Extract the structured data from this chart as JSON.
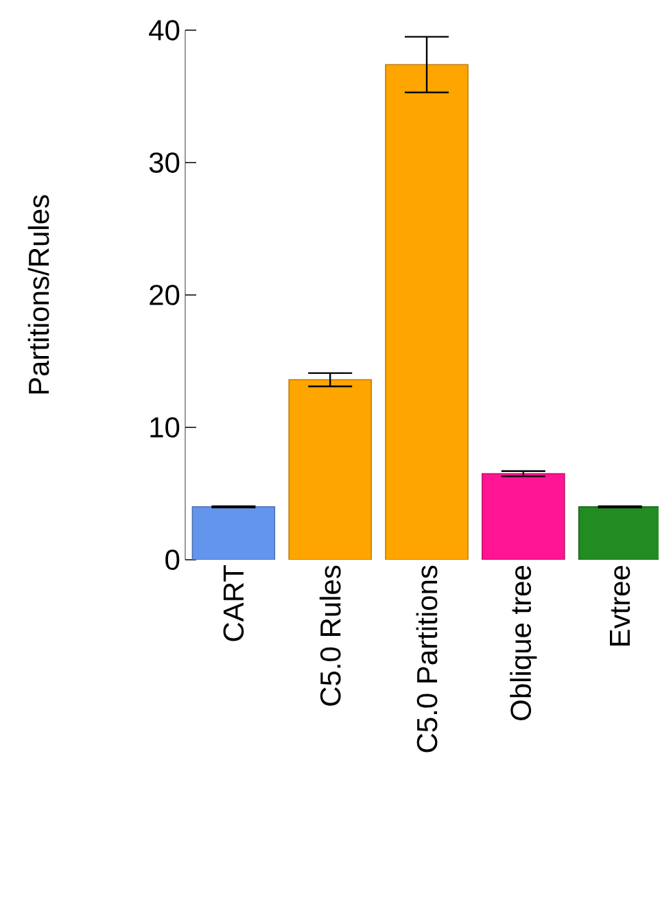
{
  "chart_data": {
    "type": "bar",
    "ylabel": "Partitions/Rules",
    "categories": [
      "CART",
      "C5.0 Rules",
      "C5.0 Partitions",
      "Oblique tree",
      "Evtree"
    ],
    "values": [
      4.0,
      13.6,
      37.4,
      6.5,
      4.0
    ],
    "errors": [
      0.05,
      0.5,
      2.1,
      0.2,
      0.05
    ],
    "colors": [
      "#6495ed",
      "#ffa500",
      "#ffa500",
      "#ff1493",
      "#228b22"
    ],
    "ylim": [
      0,
      40
    ],
    "yticks": [
      0,
      10,
      20,
      30,
      40
    ],
    "grid": false
  }
}
